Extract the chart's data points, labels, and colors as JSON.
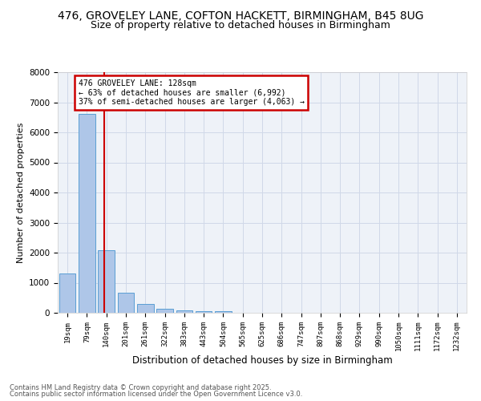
{
  "title_line1": "476, GROVELEY LANE, COFTON HACKETT, BIRMINGHAM, B45 8UG",
  "title_line2": "Size of property relative to detached houses in Birmingham",
  "xlabel": "Distribution of detached houses by size in Birmingham",
  "ylabel": "Number of detached properties",
  "categories": [
    "19sqm",
    "79sqm",
    "140sqm",
    "201sqm",
    "261sqm",
    "322sqm",
    "383sqm",
    "443sqm",
    "504sqm",
    "565sqm",
    "625sqm",
    "686sqm",
    "747sqm",
    "807sqm",
    "868sqm",
    "929sqm",
    "990sqm",
    "1050sqm",
    "1111sqm",
    "1172sqm",
    "1232sqm"
  ],
  "values": [
    1320,
    6620,
    2080,
    680,
    300,
    130,
    80,
    50,
    55,
    0,
    0,
    0,
    0,
    0,
    0,
    0,
    0,
    0,
    0,
    0,
    0
  ],
  "bar_color": "#aec6e8",
  "bar_edge_color": "#5a9fd4",
  "vline_color": "#cc0000",
  "annotation_text_line1": "476 GROVELEY LANE: 128sqm",
  "annotation_text_line2": "← 63% of detached houses are smaller (6,992)",
  "annotation_text_line3": "37% of semi-detached houses are larger (4,063) →",
  "annotation_box_color": "#cc0000",
  "ylim": [
    0,
    8000
  ],
  "yticks": [
    0,
    1000,
    2000,
    3000,
    4000,
    5000,
    6000,
    7000,
    8000
  ],
  "grid_color": "#d0d8e8",
  "bg_color": "#eef2f8",
  "footer_line1": "Contains HM Land Registry data © Crown copyright and database right 2025.",
  "footer_line2": "Contains public sector information licensed under the Open Government Licence v3.0.",
  "footer_color": "#555555"
}
